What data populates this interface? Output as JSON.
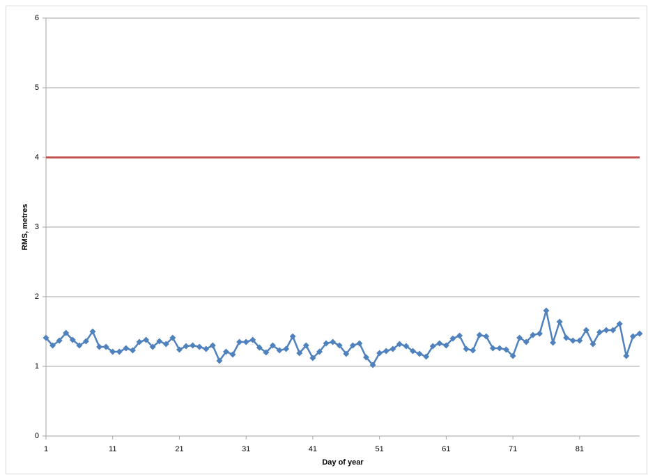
{
  "chart_data": {
    "type": "line",
    "x_label": "Day of year",
    "y_label": "RMS, metres",
    "x": [
      1,
      2,
      3,
      4,
      5,
      6,
      7,
      8,
      9,
      10,
      11,
      12,
      13,
      14,
      15,
      16,
      17,
      18,
      19,
      20,
      21,
      22,
      23,
      24,
      25,
      26,
      27,
      28,
      29,
      30,
      31,
      32,
      33,
      34,
      35,
      36,
      37,
      38,
      39,
      40,
      41,
      42,
      43,
      44,
      45,
      46,
      47,
      48,
      49,
      50,
      51,
      52,
      53,
      54,
      55,
      56,
      57,
      58,
      59,
      60,
      61,
      62,
      63,
      64,
      65,
      66,
      67,
      68,
      69,
      70,
      71,
      72,
      73,
      74,
      75,
      76,
      77,
      78,
      79,
      80,
      81,
      82,
      83,
      84,
      85,
      86,
      87,
      88,
      89,
      90
    ],
    "series": [
      {
        "color": "#4f81bd",
        "values": [
          1.41,
          1.3,
          1.37,
          1.48,
          1.38,
          1.3,
          1.36,
          1.5,
          1.28,
          1.28,
          1.21,
          1.21,
          1.26,
          1.23,
          1.35,
          1.38,
          1.28,
          1.36,
          1.32,
          1.41,
          1.24,
          1.29,
          1.3,
          1.28,
          1.25,
          1.3,
          1.08,
          1.21,
          1.17,
          1.35,
          1.35,
          1.38,
          1.27,
          1.2,
          1.3,
          1.23,
          1.25,
          1.43,
          1.19,
          1.3,
          1.12,
          1.21,
          1.33,
          1.35,
          1.3,
          1.18,
          1.3,
          1.33,
          1.13,
          1.02,
          1.19,
          1.22,
          1.25,
          1.32,
          1.29,
          1.22,
          1.18,
          1.14,
          1.29,
          1.33,
          1.3,
          1.4,
          1.44,
          1.25,
          1.23,
          1.45,
          1.43,
          1.26,
          1.26,
          1.24,
          1.15,
          1.41,
          1.35,
          1.45,
          1.47,
          1.8,
          1.34,
          1.64,
          1.41,
          1.37,
          1.37,
          1.52,
          1.32,
          1.49,
          1.52,
          1.52,
          1.61,
          1.15,
          1.43,
          1.47
        ]
      }
    ],
    "reference_line": {
      "value": 4,
      "color": "#c0504d"
    },
    "xlim": [
      1,
      90
    ],
    "xticks": [
      1,
      11,
      21,
      31,
      41,
      51,
      61,
      71,
      81
    ],
    "ylim": [
      0,
      6
    ],
    "yticks": [
      0,
      1,
      2,
      3,
      4,
      5,
      6
    ],
    "grid": true
  }
}
